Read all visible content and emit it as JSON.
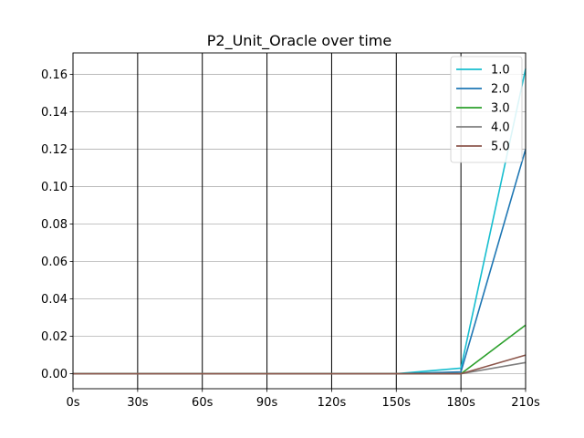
{
  "chart_data": {
    "type": "line",
    "title": "P2_Unit_Oracle over time",
    "xlabel": "",
    "ylabel": "",
    "x": [
      "0s",
      "30s",
      "60s",
      "90s",
      "120s",
      "150s",
      "180s",
      "210s"
    ],
    "x_values": [
      0,
      30,
      60,
      90,
      120,
      150,
      180,
      210
    ],
    "xlim": [
      0,
      210
    ],
    "ylim": [
      -0.008,
      0.1715
    ],
    "yticks": [
      0.0,
      0.02,
      0.04,
      0.06,
      0.08,
      0.1,
      0.12,
      0.14,
      0.16
    ],
    "ytick_labels": [
      "0.00",
      "0.02",
      "0.04",
      "0.06",
      "0.08",
      "0.10",
      "0.12",
      "0.14",
      "0.16"
    ],
    "grid": {
      "horizontal": "gray",
      "vertical": "black"
    },
    "legend_position": "top-right",
    "series": [
      {
        "name": "1.0",
        "color": "#17becf",
        "values": [
          0,
          0,
          0,
          0,
          0,
          0,
          0.003,
          0.163
        ]
      },
      {
        "name": "2.0",
        "color": "#1f77b4",
        "values": [
          0,
          0,
          0,
          0,
          0,
          0,
          0.001,
          0.12
        ]
      },
      {
        "name": "3.0",
        "color": "#2ca02c",
        "values": [
          0,
          0,
          0,
          0,
          0,
          0,
          0.0,
          0.026
        ]
      },
      {
        "name": "4.0",
        "color": "#7f7f7f",
        "values": [
          0,
          0,
          0,
          0,
          0,
          0,
          0.0,
          0.006
        ]
      },
      {
        "name": "5.0",
        "color": "#8c564b",
        "values": [
          0,
          0,
          0,
          0,
          0,
          0,
          0.0,
          0.01
        ]
      }
    ]
  }
}
